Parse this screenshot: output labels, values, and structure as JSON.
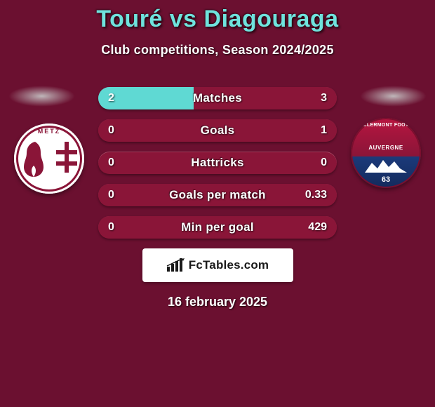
{
  "page": {
    "background_color": "#6b1030",
    "title": "Touré vs Diagouraga",
    "title_color": "#6fe3dd",
    "subtitle": "Club competitions, Season 2024/2025",
    "subtitle_color": "#ffffff",
    "date": "16 february 2025",
    "date_color": "#ffffff"
  },
  "left_team": {
    "name": "FC Metz",
    "crest_text": "METZ"
  },
  "right_team": {
    "name": "Clermont Foot",
    "crest_text_top": "CLERMONT FOOT",
    "crest_text_bot": "AUVERGNE",
    "crest_number": "63"
  },
  "stats": {
    "bar_bg_color": "#8a1538",
    "left_fill_color": "#5fd9d3",
    "right_fill_color": "#8a1538",
    "text_color": "#ffffff",
    "rows": [
      {
        "label": "Matches",
        "left": "2",
        "right": "3",
        "left_pct": 40,
        "right_pct": 60
      },
      {
        "label": "Goals",
        "left": "0",
        "right": "1",
        "left_pct": 0,
        "right_pct": 100
      },
      {
        "label": "Hattricks",
        "left": "0",
        "right": "0",
        "left_pct": 0,
        "right_pct": 0
      },
      {
        "label": "Goals per match",
        "left": "0",
        "right": "0.33",
        "left_pct": 0,
        "right_pct": 100
      },
      {
        "label": "Min per goal",
        "left": "0",
        "right": "429",
        "left_pct": 0,
        "right_pct": 100
      }
    ]
  },
  "brand": {
    "bg_color": "#ffffff",
    "text_color": "#1a1a1a",
    "label": "FcTables.com"
  }
}
